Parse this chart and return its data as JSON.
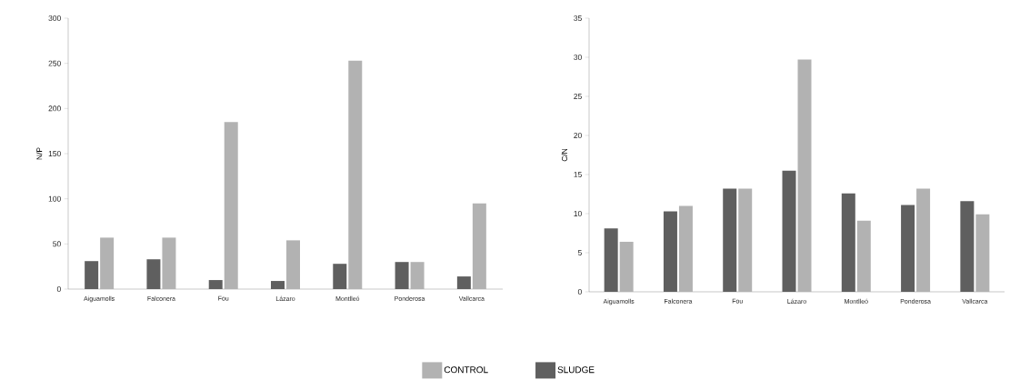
{
  "chart_data": [
    {
      "type": "bar",
      "ylabel": "N/P",
      "categories": [
        "Aiguamolls",
        "Falconera",
        "Fou",
        "Lázaro",
        "Montlleó",
        "Ponderosa",
        "Vallcarca"
      ],
      "ylim": [
        0,
        300
      ],
      "yticks": [
        0,
        50,
        100,
        150,
        200,
        250,
        300
      ],
      "legend": "bottom",
      "series": [
        {
          "name": "SLUDGE",
          "color": "#5f5f5f",
          "values": [
            31,
            33,
            10,
            9,
            28,
            30,
            14
          ]
        },
        {
          "name": "CONTROL",
          "color": "#b2b2b2",
          "values": [
            57,
            57,
            185,
            54,
            253,
            30,
            95
          ]
        }
      ]
    },
    {
      "type": "bar",
      "ylabel": "C/N",
      "categories": [
        "Aiguamolls",
        "Falconera",
        "Fou",
        "Lázaro",
        "Montlleó",
        "Ponderosa",
        "Vallcarca"
      ],
      "ylim": [
        0,
        35
      ],
      "yticks": [
        0,
        5,
        10,
        15,
        20,
        25,
        30,
        35
      ],
      "series": [
        {
          "color": "#5f5f5f",
          "values": [
            8.1,
            10.3,
            13.2,
            15.5,
            12.6,
            11.1,
            11.6
          ]
        },
        {
          "color": "#b2b2b2",
          "values": [
            6.4,
            11.0,
            13.2,
            29.7,
            9.1,
            13.2,
            9.9
          ]
        }
      ]
    }
  ]
}
